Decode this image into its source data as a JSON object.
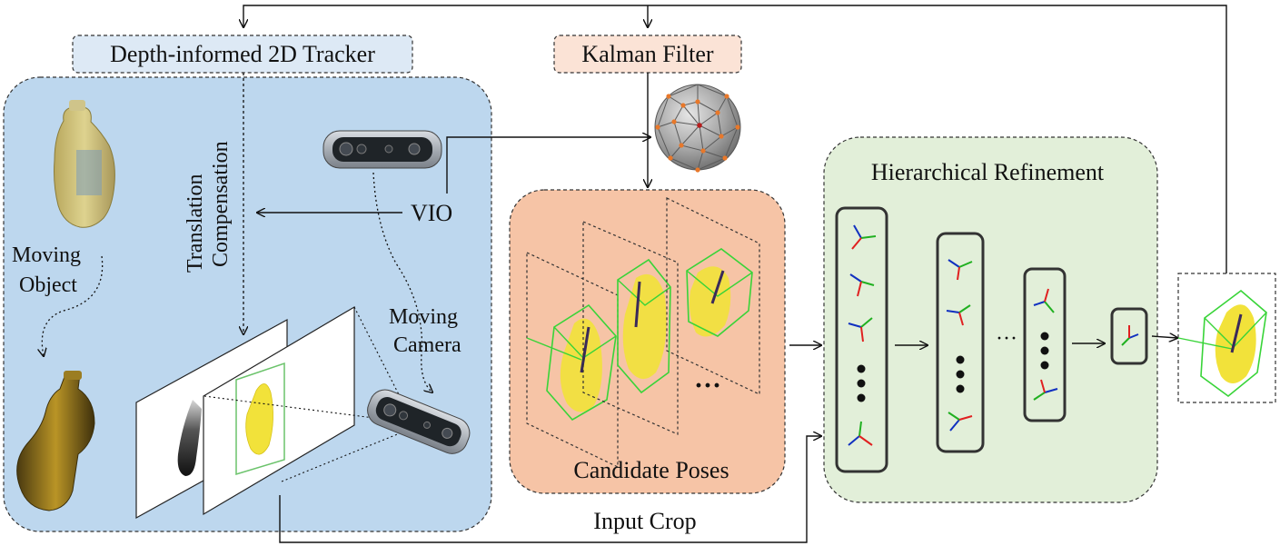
{
  "labels": {
    "tracker": "Depth-informed 2D Tracker",
    "kalman": "Kalman Filter",
    "translation_line1": "Translation",
    "translation_line2": "Compensation",
    "vio": "VIO",
    "moving_object_line1": "Moving",
    "moving_object_line2": "Object",
    "moving_camera_line1": "Moving",
    "moving_camera_line2": "Camera",
    "candidate_poses": "Candidate Poses",
    "input_crop": "Input Crop",
    "hierarchical_refinement": "Hierarchical Refinement",
    "ellipsis_candidates": "···",
    "ellipsis_refine": "···"
  },
  "colors": {
    "tracker_box": "#dde9f5",
    "kalman_box": "#fbe3d6",
    "scene_panel": "#bdd7ee",
    "candidate_panel": "#f6c4a6",
    "refine_panel": "#e2efd9",
    "bbox_green": "#38d438",
    "axis_red": "#e02020",
    "axis_green": "#20b020",
    "axis_blue": "#1030c0",
    "object_yellow": "#f2e23a"
  },
  "icons": {
    "sphere": "geodesic-sphere-icon",
    "camera": "depth-camera-icon",
    "bottle": "bottle-object-icon"
  }
}
